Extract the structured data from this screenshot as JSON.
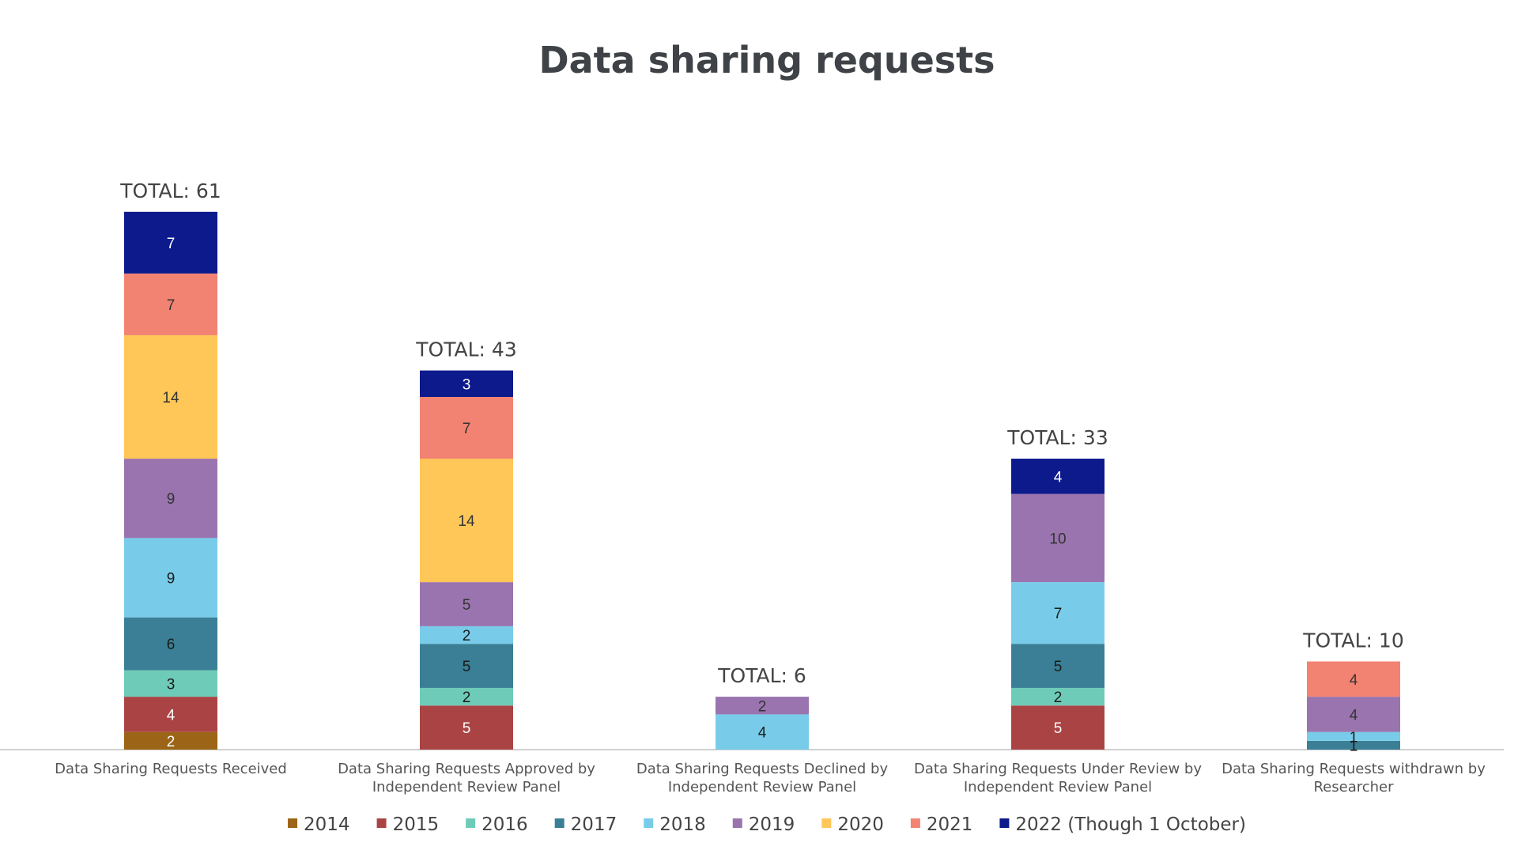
{
  "chart_data": {
    "type": "bar",
    "stacked": true,
    "title": "Data sharing requests",
    "xlabel": "",
    "ylabel": "",
    "grid": false,
    "legend_position": "bottom",
    "categories": [
      [
        "Data Sharing Requests Received"
      ],
      [
        "Data Sharing Requests Approved by",
        "Independent Review Panel"
      ],
      [
        "Data Sharing Requests Declined by",
        "Independent Review Panel"
      ],
      [
        "Data Sharing Requests Under Review by",
        "Independent Review Panel"
      ],
      [
        "Data Sharing Requests withdrawn by",
        "Researcher"
      ]
    ],
    "totals": [
      "TOTAL: 61",
      "TOTAL: 43",
      "TOTAL: 6",
      "TOTAL: 33",
      "TOTAL: 10"
    ],
    "series": [
      {
        "name": "2014",
        "color": "#9c6416",
        "label_color": "#ffffff",
        "values": [
          2,
          null,
          null,
          null,
          null
        ]
      },
      {
        "name": "2015",
        "color": "#aa4444",
        "label_color": "#ffffff",
        "values": [
          4,
          5,
          null,
          5,
          null
        ]
      },
      {
        "name": "2016",
        "color": "#6ecbb8",
        "label_color": "#1a1a1a",
        "values": [
          3,
          2,
          null,
          2,
          null
        ]
      },
      {
        "name": "2017",
        "color": "#3a7f96",
        "label_color": "#1a1a1a",
        "values": [
          6,
          5,
          null,
          5,
          1
        ]
      },
      {
        "name": "2018",
        "color": "#78cce9",
        "label_color": "#1a1a1a",
        "values": [
          9,
          2,
          4,
          7,
          1
        ]
      },
      {
        "name": "2019",
        "color": "#9a74ae",
        "label_color": "#333333",
        "values": [
          9,
          5,
          2,
          10,
          4
        ]
      },
      {
        "name": "2020",
        "color": "#ffc658",
        "label_color": "#333333",
        "values": [
          14,
          14,
          null,
          null,
          null
        ]
      },
      {
        "name": "2021",
        "color": "#f28372",
        "label_color": "#333333",
        "values": [
          7,
          7,
          null,
          null,
          4
        ]
      },
      {
        "name": "2022 (Though 1 October)",
        "color": "#0c1a8c",
        "label_color": "#ffffff",
        "values": [
          7,
          3,
          null,
          4,
          null
        ]
      }
    ]
  }
}
